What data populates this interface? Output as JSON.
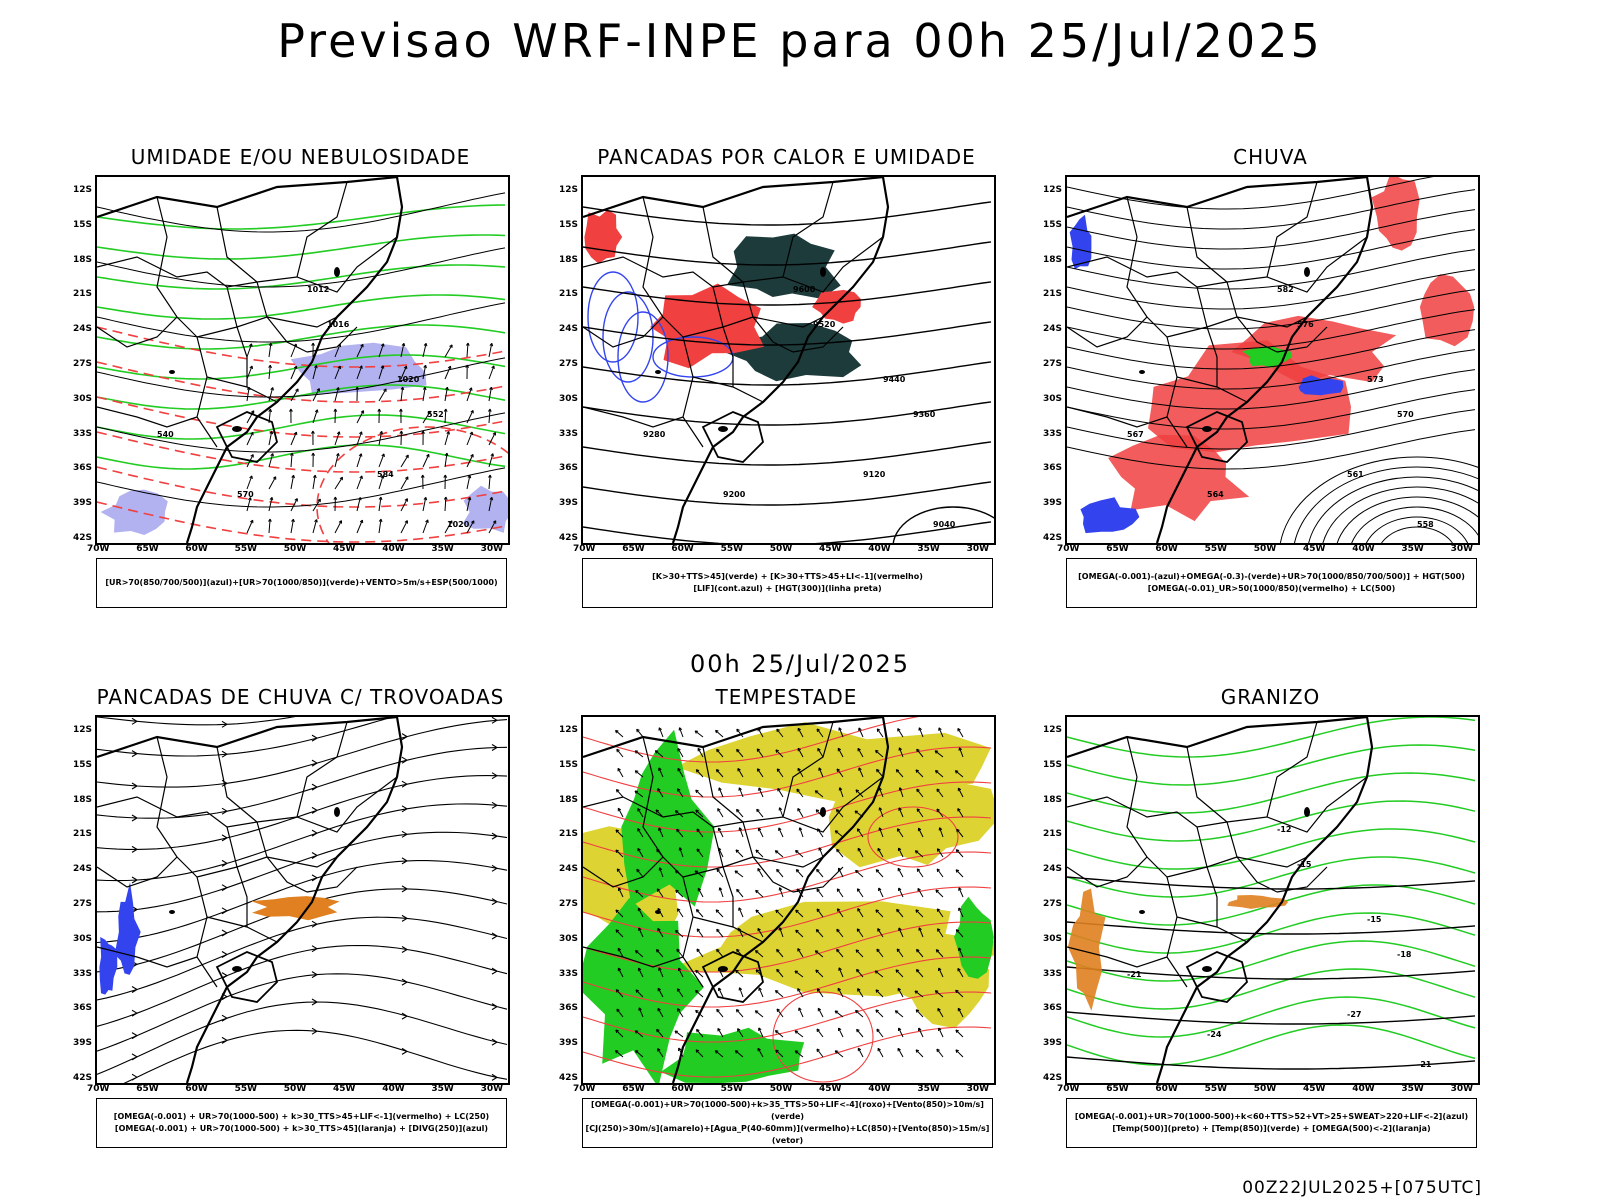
{
  "main_title": "Previsao WRF-INPE  para 00h 25/Jul/2025",
  "mid_title": "00h 25/Jul/2025",
  "footer": "00Z22JUL2025+[075UTC]",
  "lat_labels": [
    "12S",
    "15S",
    "18S",
    "21S",
    "24S",
    "27S",
    "30S",
    "33S",
    "36S",
    "39S",
    "42S"
  ],
  "lon_labels": [
    "70W",
    "65W",
    "60W",
    "55W",
    "50W",
    "45W",
    "40W",
    "35W",
    "30W"
  ],
  "colors": {
    "red": "#f04040",
    "green": "#22cc22",
    "blue": "#3344ee",
    "lavender": "#aaaaf0",
    "darkteal": "#1d3b3b",
    "yellow": "#ddd433",
    "orange": "#e08020"
  },
  "panels": [
    {
      "id": "umidade",
      "title": "UMIDADE E/OU NEBULOSIDADE",
      "legend": [
        "[UR>70(850/700/500)](azul)+[UR>70(1000/850)](verde)+VENTO>5m/s+ESP(500/1000)"
      ],
      "labels": [
        "1012",
        "1016",
        "1020",
        "552",
        "540",
        "570",
        "584",
        "1020"
      ]
    },
    {
      "id": "pancadas-calor",
      "title": "PANCADAS POR CALOR E UMIDADE",
      "legend": [
        "[K>30+TTS>45](verde)  +  [K>30+TTS>45+LI<-1](vermelho)",
        "[LIF](cont.azul)  +  [HGT(300)](linha preta)"
      ],
      "labels": [
        "9600",
        "9520",
        "9440",
        "9360",
        "9280",
        "9200",
        "9120",
        "9040"
      ]
    },
    {
      "id": "chuva",
      "title": "CHUVA",
      "legend": [
        "[OMEGA(-0.001)-(azul)+OMEGA(-0.3)-(verde)+UR>70(1000/850/700/500)]  +  HGT(500)",
        "[OMEGA(-0.01)_UR>50(1000/850)(vermelho) + LC(500)"
      ],
      "labels": [
        "582",
        "576",
        "573",
        "570",
        "567",
        "564",
        "561",
        "558"
      ]
    },
    {
      "id": "pancadas-trovoadas",
      "title": "PANCADAS DE CHUVA C/ TROVOADAS",
      "legend": [
        "[OMEGA(-0.001)  +  UR>70(1000-500)  +  k>30_TTS>45+LIF<-1](vermelho)  +  LC(250)",
        "[OMEGA(-0.001)  +  UR>70(1000-500)  +  k>30_TTS>45](laranja)  +  [DIVG(250)](azul)"
      ],
      "labels": []
    },
    {
      "id": "tempestade",
      "title": "TEMPESTADE",
      "legend": [
        "[OMEGA(-0.001)+UR>70(1000-500)+k>35_TTS>50+LIF<-4](roxo)+[Vento(850)>10m/s](verde)",
        "[CJ(250)>30m/s](amarelo)+[Agua_P(40-60mm)](vermelho)+LC(850)+[Vento(850)>15m/s](vetor)"
      ],
      "labels": []
    },
    {
      "id": "granizo",
      "title": "GRANIZO",
      "legend": [
        "[OMEGA(-0.001)+UR>70(1000-500)+k<60+TTS>52+VT>25+SWEAT>220+LIF<-2](azul)",
        "[Temp(500)](preto)  +  [Temp(850)](verde)  +  [OMEGA(500)<-2](laranja)"
      ],
      "labels": [
        "-12",
        "-15",
        "-15",
        "-18",
        "-21",
        "-24",
        "-27",
        "-21"
      ]
    }
  ]
}
